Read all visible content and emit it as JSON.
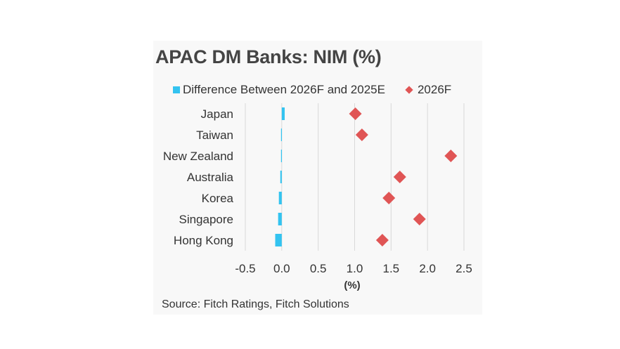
{
  "title": "APAC DM Banks: NIM (%)",
  "source": "Source: Fitch Ratings, Fitch Solutions",
  "colors": {
    "bar": "#33c3f0",
    "marker": "#e05555",
    "grid": "#d9d9d9",
    "axis_text": "#333333"
  },
  "chart_data": {
    "type": "bar",
    "orientation": "horizontal",
    "title": "APAC DM Banks: NIM (%)",
    "xlabel": "(%)",
    "ylabel": "",
    "xlim": [
      -0.5,
      2.5
    ],
    "xticks": [
      -0.5,
      0.0,
      0.5,
      1.0,
      1.5,
      2.0,
      2.5
    ],
    "xtick_labels": [
      "-0.5",
      "0.0",
      "0.5",
      "1.0",
      "1.5",
      "2.0",
      "2.5"
    ],
    "grid": "vertical",
    "legend_position": "top",
    "categories": [
      "Japan",
      "Taiwan",
      "New Zealand",
      "Australia",
      "Korea",
      "Singapore",
      "Hong Kong"
    ],
    "series": [
      {
        "name": "Difference Between 2026F and 2025E",
        "type": "bar",
        "values": [
          0.04,
          -0.01,
          -0.01,
          -0.02,
          -0.04,
          -0.05,
          -0.09
        ]
      },
      {
        "name": "2026F",
        "type": "scatter",
        "marker": "diamond",
        "values": [
          1.01,
          1.1,
          2.32,
          1.62,
          1.47,
          1.89,
          1.38
        ]
      }
    ]
  }
}
